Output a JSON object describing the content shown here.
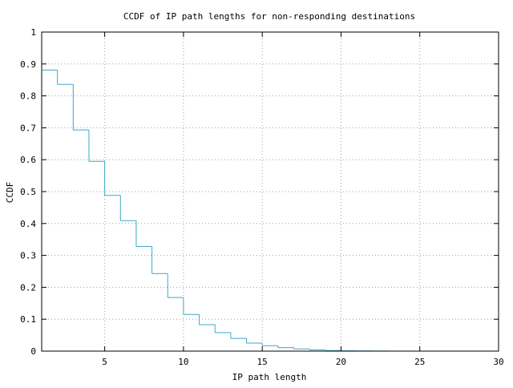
{
  "chart_data": {
    "type": "line",
    "style": "step",
    "title": "CCDF of IP path lengths for non-responding destinations",
    "xlabel": "IP path length",
    "ylabel": "CCDF",
    "xlim": [
      1,
      30
    ],
    "ylim": [
      0,
      1
    ],
    "x_ticks": [
      5,
      10,
      15,
      20,
      25,
      30
    ],
    "y_ticks": [
      0,
      0.1,
      0.2,
      0.3,
      0.4,
      0.5,
      0.6,
      0.7,
      0.8,
      0.9,
      1
    ],
    "y_tick_labels": [
      "0",
      "0.1",
      "0.2",
      "0.3",
      "0.4",
      "0.5",
      "0.6",
      "0.7",
      "0.8",
      "0.9",
      "1"
    ],
    "grid": true,
    "line_color": "#3aa9c8",
    "grid_color": "#a0a0a0",
    "series": [
      {
        "x": [
          1,
          2,
          3,
          4,
          5,
          6,
          7,
          8,
          9,
          10,
          11,
          12,
          13,
          14,
          15,
          16,
          17,
          18,
          19,
          20,
          21,
          22
        ],
        "values": [
          0.881,
          0.836,
          0.693,
          0.595,
          0.488,
          0.409,
          0.328,
          0.243,
          0.168,
          0.115,
          0.083,
          0.058,
          0.04,
          0.025,
          0.017,
          0.011,
          0.007,
          0.004,
          0.002,
          0.001,
          0.0005,
          0.0002
        ]
      }
    ]
  }
}
